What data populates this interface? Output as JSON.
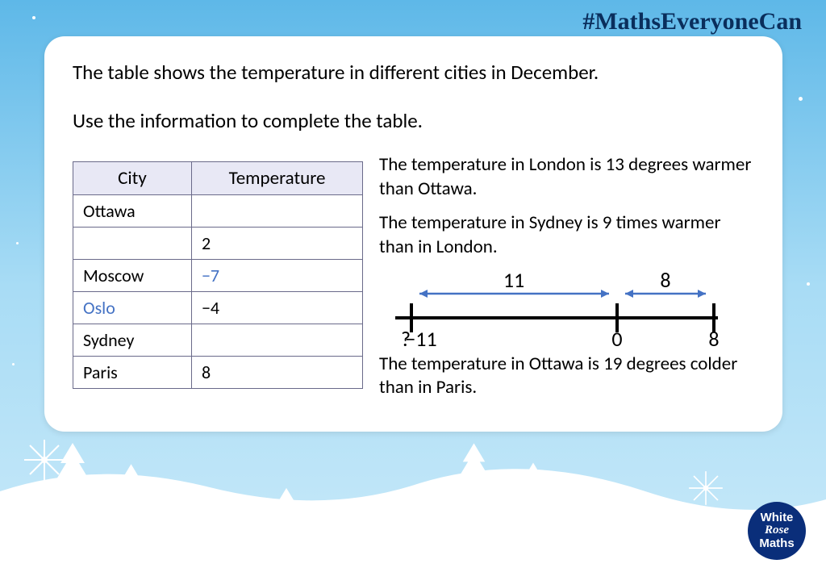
{
  "hashtag": "#MathsEveryoneCan",
  "intro_line1": "The table shows the temperature in different cities in December.",
  "intro_line2": "Use the information to complete the table.",
  "table": {
    "header_city": "City",
    "header_temp": "Temperature",
    "rows": [
      {
        "city": "Ottawa",
        "temp": "",
        "city_answer": false,
        "temp_answer": false
      },
      {
        "city": "",
        "temp": "2",
        "city_answer": false,
        "temp_answer": false
      },
      {
        "city": "Moscow",
        "temp": "−7",
        "city_answer": false,
        "temp_answer": true
      },
      {
        "city": "Oslo",
        "temp": "−4",
        "city_answer": true,
        "temp_answer": false
      },
      {
        "city": "Sydney",
        "temp": "",
        "city_answer": false,
        "temp_answer": false
      },
      {
        "city": "Paris",
        "temp": "8",
        "city_answer": false,
        "temp_answer": false
      }
    ]
  },
  "clues": {
    "c1": "The temperature in London is 13 degrees warmer than Ottawa.",
    "c2": "The temperature in Sydney is 9 times warmer than in London.",
    "c3": "The temperature in Ottawa is 19 degrees colder than in Paris."
  },
  "numberline": {
    "left_label": "−11",
    "mid_label": "0",
    "right_label": "8",
    "span1_label": "11",
    "span2_label": "8",
    "line_color": "#000000",
    "arrow_color": "#4472c4",
    "text_color": "#000000",
    "fontsize": 26,
    "question_mark": "?"
  },
  "logo": {
    "l1": "White",
    "l2": "Rose",
    "l3": "Maths"
  },
  "colors": {
    "bg_top": "#5eb8e8",
    "bg_bottom": "#c8e9f9",
    "card_bg": "#ffffff",
    "table_border": "#6a6a8a",
    "table_header_bg": "#e8e8f5",
    "answer_color": "#4472c4",
    "hashtag_color": "#0a2e5c",
    "logo_bg": "#0a2e7a"
  }
}
